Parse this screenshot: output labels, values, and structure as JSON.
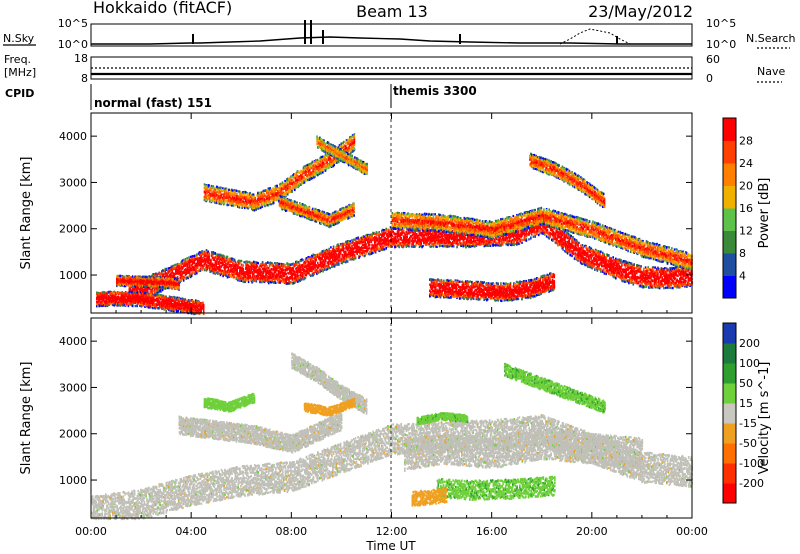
{
  "header": {
    "station": "Hokkaido (fitACF)",
    "beam": "Beam 13",
    "date": "23/May/2012"
  },
  "top_panels": {
    "nsky_label": "N.Sky",
    "nsearch_label": "N.Search",
    "freq_label_line1": "Freq.",
    "freq_label_line2": "[MHz]",
    "nave_label": "Nave",
    "cpid_label": "CPID",
    "nsky_ticks": [
      "10^5",
      "10^0"
    ],
    "nsearch_ticks": [
      "10^5",
      "10^0"
    ],
    "freq_ticks": [
      "18",
      "8"
    ],
    "nave_ticks": [
      "60",
      "0"
    ],
    "cpid_segments": [
      {
        "label": "normal (fast) 151",
        "start_hour": 0
      },
      {
        "label": "themis 3300",
        "start_hour": 12
      }
    ]
  },
  "colors": {
    "power": [
      "#0000ff",
      "#1e4fa0",
      "#3a8a3a",
      "#5ec24a",
      "#f0b000",
      "#ff8000",
      "#ff4000",
      "#ff0000"
    ],
    "velocity": [
      "#1a3ab0",
      "#1c7a3a",
      "#2e9e2e",
      "#6ed03a",
      "#c8c8c0",
      "#f0a020",
      "#ff7000",
      "#ff3000",
      "#ff0000"
    ],
    "ground_scatter": "#c0c0b8"
  },
  "chart_data": [
    {
      "type": "heatmap",
      "name": "power",
      "ylabel": "Slant Range [km]",
      "xlabel": "Time UT",
      "x_ticks": [
        "00:00",
        "04:00",
        "08:00",
        "12:00",
        "16:00",
        "20:00",
        "00:00"
      ],
      "y_ticks": [
        "1000",
        "2000",
        "3000",
        "4000"
      ],
      "xlim": [
        0,
        24
      ],
      "ylim": [
        180,
        4500
      ],
      "colorbar_label": "Power [dB]",
      "colorbar_ticks": [
        "4",
        "8",
        "12",
        "16",
        "20",
        "24",
        "28"
      ],
      "scatter_bands": [
        {
          "points": [
            [
              1.5,
              600
            ],
            [
              3,
              950
            ],
            [
              4.5,
              1350
            ],
            [
              6,
              1100
            ],
            [
              8,
              1050
            ],
            [
              10,
              1500
            ],
            [
              12,
              1850
            ],
            [
              15,
              1850
            ],
            [
              17,
              1900
            ],
            [
              18,
              2150
            ],
            [
              19.5,
              1500
            ],
            [
              21,
              1150
            ],
            [
              22,
              980
            ],
            [
              23,
              950
            ],
            [
              24,
              1000
            ]
          ],
          "width": 320,
          "level": 3
        },
        {
          "points": [
            [
              4.5,
              2800
            ],
            [
              5.5,
              2700
            ],
            [
              6.5,
              2600
            ],
            [
              7.5,
              2800
            ],
            [
              8.5,
              3200
            ],
            [
              9.5,
              3500
            ],
            [
              10.5,
              3900
            ]
          ],
          "width": 260,
          "level": 1
        },
        {
          "points": [
            [
              7.5,
              2600
            ],
            [
              8.5,
              2400
            ],
            [
              9.5,
              2200
            ],
            [
              10.5,
              2450
            ]
          ],
          "width": 200,
          "level": 1
        },
        {
          "points": [
            [
              12,
              2200
            ],
            [
              14,
              2150
            ],
            [
              16,
              2000
            ],
            [
              18,
              2300
            ],
            [
              20,
              2000
            ],
            [
              22,
              1600
            ],
            [
              24,
              1300
            ]
          ],
          "width": 260,
          "level": 1
        },
        {
          "points": [
            [
              13.5,
              750
            ],
            [
              15,
              700
            ],
            [
              16.5,
              650
            ],
            [
              17.5,
              720
            ],
            [
              18.5,
              900
            ]
          ],
          "width": 280,
          "level": 3
        },
        {
          "points": [
            [
              0.2,
              500
            ],
            [
              1,
              520
            ],
            [
              2,
              500
            ],
            [
              3,
              420
            ],
            [
              4.5,
              300
            ]
          ],
          "width": 220,
          "level": 3
        },
        {
          "points": [
            [
              1,
              900
            ],
            [
              2,
              880
            ],
            [
              3,
              860
            ],
            [
              3.5,
              820
            ]
          ],
          "width": 160,
          "level": 2
        },
        {
          "points": [
            [
              17.5,
              3500
            ],
            [
              18.5,
              3300
            ],
            [
              19.5,
              3000
            ],
            [
              20.5,
              2600
            ]
          ],
          "width": 220,
          "level": 1
        },
        {
          "points": [
            [
              9,
              3900
            ],
            [
              10,
              3600
            ],
            [
              11,
              3300
            ]
          ],
          "width": 180,
          "level": 0
        }
      ]
    },
    {
      "type": "heatmap",
      "name": "velocity",
      "ylabel": "Slant Range [km]",
      "xlabel": "Time UT",
      "x_ticks": [
        "00:00",
        "04:00",
        "08:00",
        "12:00",
        "16:00",
        "20:00",
        "00:00"
      ],
      "y_ticks": [
        "1000",
        "2000",
        "3000",
        "4000"
      ],
      "xlim": [
        0,
        24
      ],
      "ylim": [
        180,
        4500
      ],
      "colorbar_label": "Velocity [m s^-1]",
      "colorbar_ticks": [
        "200",
        "100",
        "50",
        "15",
        "-15",
        "-50",
        "-100",
        "-200"
      ],
      "regions": [
        {
          "points": [
            [
              0,
              350
            ],
            [
              2,
              500
            ],
            [
              4,
              800
            ],
            [
              6,
              1000
            ],
            [
              8,
              1100
            ],
            [
              10,
              1500
            ],
            [
              12,
              1900
            ],
            [
              16,
              2000
            ],
            [
              18,
              2100
            ],
            [
              20,
              1700
            ],
            [
              22,
              1300
            ],
            [
              24,
              1200
            ]
          ],
          "width": 500,
          "color": "ground"
        },
        {
          "points": [
            [
              3.5,
              2200
            ],
            [
              5,
              2100
            ],
            [
              6.5,
              2000
            ],
            [
              8,
              1800
            ],
            [
              10,
              2300
            ]
          ],
          "width": 300,
          "color": "ground"
        },
        {
          "points": [
            [
              8,
              3600
            ],
            [
              9,
              3300
            ],
            [
              10,
              2900
            ],
            [
              11,
              2600
            ]
          ],
          "width": 250,
          "color": "ground"
        },
        {
          "points": [
            [
              12.5,
              1550
            ],
            [
              14,
              1700
            ],
            [
              16,
              1600
            ],
            [
              18,
              1800
            ],
            [
              20,
              1700
            ],
            [
              22,
              1600
            ]
          ],
          "width": 500,
          "color": "ground"
        },
        {
          "points": [
            [
              13.8,
              850
            ],
            [
              15,
              800
            ],
            [
              17,
              830
            ],
            [
              18.5,
              900
            ]
          ],
          "width": 320,
          "color": "green"
        },
        {
          "points": [
            [
              12.8,
              620
            ],
            [
              13.5,
              650
            ],
            [
              14.2,
              700
            ]
          ],
          "width": 240,
          "color": "orange"
        },
        {
          "points": [
            [
              13,
              2300
            ],
            [
              14,
              2400
            ],
            [
              15,
              2350
            ]
          ],
          "width": 120,
          "color": "green"
        },
        {
          "points": [
            [
              16.5,
              3400
            ],
            [
              17.5,
              3200
            ],
            [
              18.5,
              3000
            ],
            [
              19.5,
              2800
            ],
            [
              20.5,
              2600
            ]
          ],
          "width": 200,
          "color": "green"
        },
        {
          "points": [
            [
              8.5,
              2600
            ],
            [
              9.5,
              2500
            ],
            [
              10.5,
              2700
            ]
          ],
          "width": 140,
          "color": "orange"
        },
        {
          "points": [
            [
              4.5,
              2700
            ],
            [
              5.5,
              2600
            ],
            [
              6.5,
              2800
            ]
          ],
          "width": 160,
          "color": "lightgreen"
        }
      ]
    }
  ]
}
